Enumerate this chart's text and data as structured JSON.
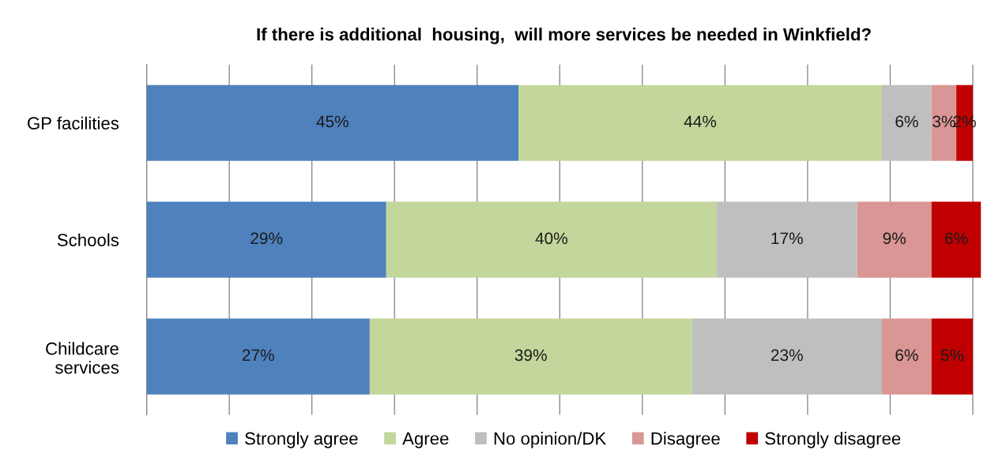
{
  "chart_data": {
    "type": "bar",
    "orientation": "horizontal",
    "stacked": true,
    "title": "If there is additional  housing,  will more services be needed in Winkfield?",
    "categories": [
      "GP facilities",
      "Schools",
      "Childcare\nservices"
    ],
    "series": [
      {
        "name": "Strongly agree",
        "color": "#4f81bd",
        "values": [
          45,
          29,
          27
        ],
        "value_labels": [
          "45%",
          "29%",
          "27%"
        ]
      },
      {
        "name": "Agree",
        "color": "#c3d69b",
        "values": [
          44,
          40,
          39
        ],
        "value_labels": [
          "44%",
          "40%",
          "39%"
        ]
      },
      {
        "name": "No opinion/DK",
        "color": "#bfbfbf",
        "values": [
          6,
          17,
          23
        ],
        "value_labels": [
          "6%",
          "17%",
          "23%"
        ]
      },
      {
        "name": "Disagree",
        "color": "#d99694",
        "values": [
          3,
          9,
          6
        ],
        "value_labels": [
          "3%",
          "9%",
          "6%"
        ]
      },
      {
        "name": "Strongly disagree",
        "color": "#c00000",
        "values": [
          2,
          6,
          5
        ],
        "value_labels": [
          "2%",
          "6%",
          "5%"
        ]
      }
    ],
    "xlim": [
      0,
      101
    ],
    "xticks": [
      {
        "value": 0,
        "label": null
      },
      {
        "value": 10,
        "label": null
      },
      {
        "value": 20,
        "label": null
      },
      {
        "value": 30,
        "label": null
      },
      {
        "value": 40,
        "label": null
      },
      {
        "value": 50,
        "label": null
      },
      {
        "value": 60,
        "label": null
      },
      {
        "value": 70,
        "label": null
      },
      {
        "value": 80,
        "label": null
      },
      {
        "value": 90,
        "label": null
      },
      {
        "value": 100,
        "label": null
      }
    ],
    "tick_labels": "y",
    "grid": "x",
    "legend": "bottom"
  }
}
